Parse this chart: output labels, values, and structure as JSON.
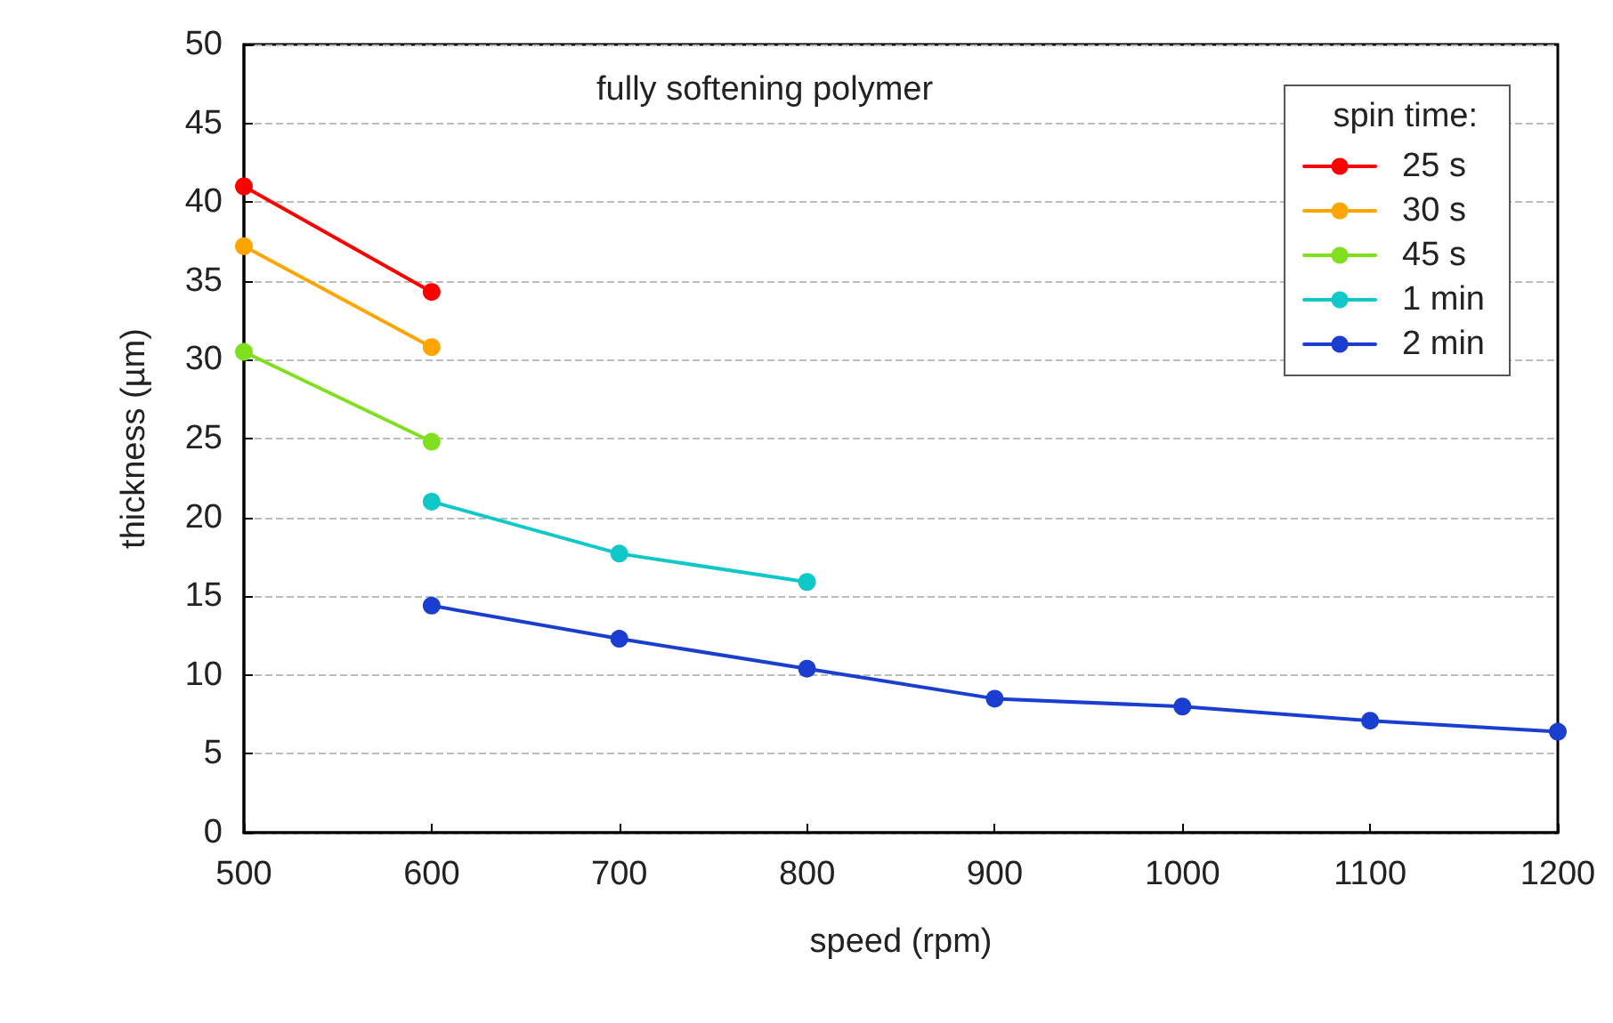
{
  "chart_data": {
    "type": "line",
    "title": "fully softening polymer",
    "xlabel": "speed (rpm)",
    "ylabel": "thickness (µm)",
    "legend_title": "spin time:",
    "series": [
      {
        "name": "25 s",
        "color": "#ff0000",
        "x": [
          500,
          600
        ],
        "values": [
          41.0,
          34.3
        ]
      },
      {
        "name": "30 s",
        "color": "#ffa500",
        "x": [
          500,
          600
        ],
        "values": [
          37.2,
          30.8
        ]
      },
      {
        "name": "45 s",
        "color": "#80e020",
        "x": [
          500,
          600
        ],
        "values": [
          30.5,
          24.8
        ]
      },
      {
        "name": "1 min",
        "color": "#10c8c8",
        "x": [
          600,
          700,
          800
        ],
        "values": [
          21.0,
          17.7,
          15.9
        ]
      },
      {
        "name": "2 min",
        "color": "#1a3fd0",
        "x": [
          600,
          700,
          800,
          900,
          1000,
          1100,
          1200
        ],
        "values": [
          14.4,
          12.3,
          10.4,
          8.5,
          8.0,
          7.1,
          6.4
        ]
      }
    ],
    "xlim": [
      500,
      1200
    ],
    "xticks": [
      500,
      600,
      700,
      800,
      900,
      1000,
      1100,
      1200
    ],
    "ylim": [
      0,
      50
    ],
    "yticks": [
      0,
      5,
      10,
      15,
      20,
      25,
      30,
      35,
      40,
      45,
      50
    ],
    "grid": "y",
    "legend": "top right",
    "marker": "circle",
    "line_style": "solid"
  }
}
